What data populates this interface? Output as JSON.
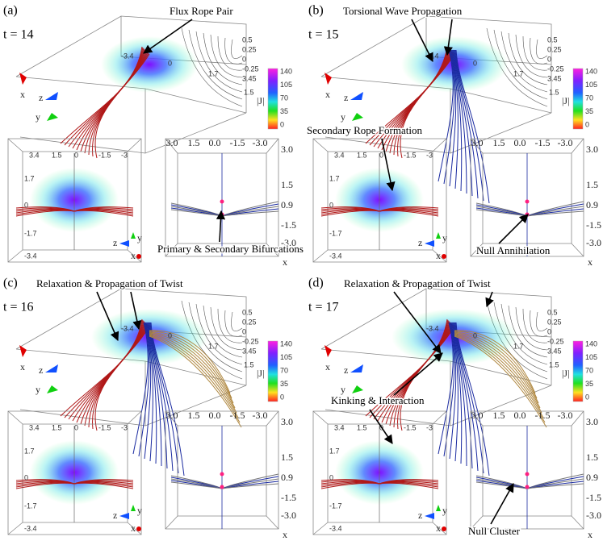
{
  "panels": [
    {
      "label": "(a)",
      "time": "t = 14",
      "annotations": [
        "Flux Rope Pair",
        "Primary & Secondary Bifurcations"
      ]
    },
    {
      "label": "(b)",
      "time": "t = 15",
      "annotations": [
        "Torsional Wave Propagation",
        "Secondary Rope Formation",
        "Null Annihilation"
      ]
    },
    {
      "label": "(c)",
      "time": "t = 16",
      "annotations": [
        "Relaxation & Propagation of Twist"
      ]
    },
    {
      "label": "(d)",
      "time": "t = 17",
      "annotations": [
        "Relaxation & Propagation of Twist",
        "Kinking & Interaction",
        "Null Cluster"
      ]
    }
  ],
  "colorbar": {
    "label": "|J|",
    "ticks": [
      "140",
      "105",
      "70",
      "35",
      "0"
    ]
  },
  "box3d": {
    "front_ticks": [
      "-3.4",
      "0",
      "1.7"
    ],
    "right_ticks": [
      "0.5",
      "0.25",
      "0",
      "-0.25",
      "3.45"
    ],
    "side_tick": "1.5",
    "axes": [
      "x",
      "z",
      "y"
    ]
  },
  "side_view": {
    "top_ticks": [
      "3.4",
      "1.5",
      "0",
      "-1.5",
      "-3"
    ],
    "left_ticks": [
      "1.7",
      "0",
      "-1.7",
      "-3.4"
    ],
    "axes": [
      "z",
      "y",
      "x"
    ]
  },
  "top_view": {
    "top_ticks": [
      "3.0",
      "1.5",
      "0.0",
      "-1.5",
      "-3.0"
    ],
    "right_ticks": [
      "3.0",
      "1.5",
      "0.9",
      "-1.5",
      "-3.0"
    ],
    "axis": "x"
  }
}
